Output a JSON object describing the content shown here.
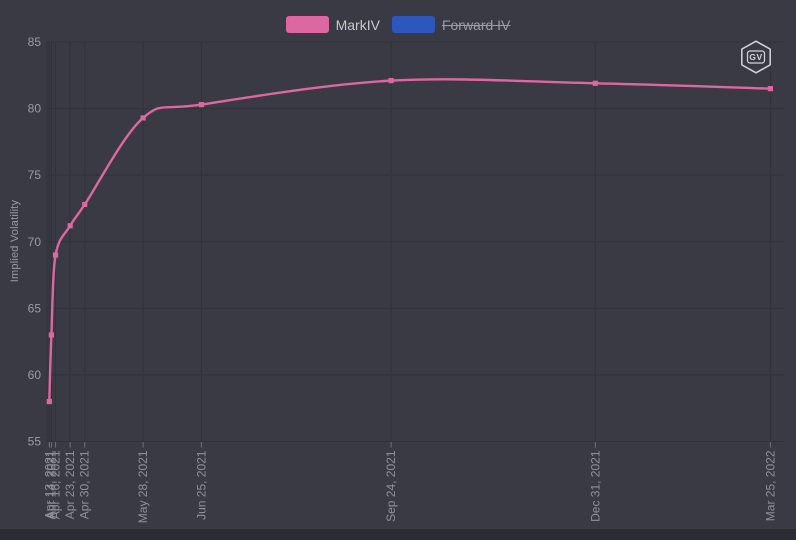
{
  "logo": {
    "text": "GV"
  },
  "chart_data": {
    "type": "line",
    "title": "",
    "xlabel": "",
    "ylabel": "Implied Volatility",
    "ylim": [
      55,
      85
    ],
    "yticks": [
      55,
      60,
      65,
      70,
      75,
      80,
      85
    ],
    "grid": true,
    "legend_position": "top-center",
    "x": [
      "Apr 13, 2021",
      "Apr 14, 2021",
      "Apr 16, 2021",
      "Apr 23, 2021",
      "Apr 30, 2021",
      "May 28, 2021",
      "Jun 25, 2021",
      "Sep 24, 2021",
      "Dec 31, 2021",
      "Mar 25, 2022"
    ],
    "x_days": [
      0,
      1,
      3,
      10,
      17,
      45,
      73,
      164,
      262,
      346
    ],
    "series": [
      {
        "name": "MarkIV",
        "color": "#dd67a0",
        "visible": true,
        "values": [
          58.0,
          63.0,
          69.0,
          71.2,
          72.8,
          79.3,
          80.3,
          82.1,
          81.9,
          81.5
        ]
      },
      {
        "name": "Forward IV",
        "color": "#2d57bd",
        "visible": false,
        "values": []
      }
    ],
    "colors": {
      "plot_background": "#393a44",
      "page_background": "#2b2c34",
      "gridline": "#31323c",
      "tick_mark": "#70727b",
      "axis_text": "#969aa2"
    }
  }
}
